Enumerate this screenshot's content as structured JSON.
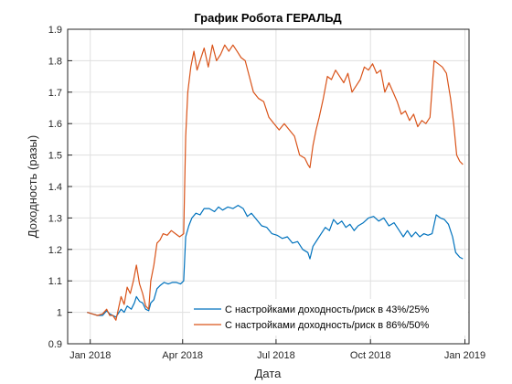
{
  "colors": {
    "series1": "#0072bd",
    "series2": "#d95319",
    "grid": "#dfdfdf",
    "axis": "#262626"
  },
  "chart_data": {
    "type": "line",
    "title": "График Робота ГЕРАЛЬД",
    "xlabel": "Дата",
    "ylabel": "Доходность (разы)",
    "x_type": "date",
    "xlim": [
      "2017-12-10",
      "2019-01-05"
    ],
    "ylim": [
      0.9,
      1.9
    ],
    "x_ticks": [
      {
        "date": "2018-01-01",
        "label": "Jan 2018"
      },
      {
        "date": "2018-04-01",
        "label": "Apr 2018"
      },
      {
        "date": "2018-07-01",
        "label": "Jul 2018"
      },
      {
        "date": "2018-10-01",
        "label": "Oct 2018"
      },
      {
        "date": "2019-01-01",
        "label": "Jan 2019"
      }
    ],
    "y_ticks": [
      "0.9",
      "1",
      "1.1",
      "1.2",
      "1.3",
      "1.4",
      "1.5",
      "1.6",
      "1.7",
      "1.8",
      "1.9"
    ],
    "grid": true,
    "legend_position": "bottom-right",
    "series": [
      {
        "name": "С настройками доходность/риск в 43%/25%",
        "color": "#0072bd",
        "points": [
          [
            "2017-12-29",
            1.0
          ],
          [
            "2018-01-03",
            0.995
          ],
          [
            "2018-01-08",
            0.99
          ],
          [
            "2018-01-13",
            0.99
          ],
          [
            "2018-01-17",
            1.005
          ],
          [
            "2018-01-20",
            0.995
          ],
          [
            "2018-01-23",
            0.99
          ],
          [
            "2018-01-26",
            0.985
          ],
          [
            "2018-01-31",
            1.01
          ],
          [
            "2018-02-03",
            1.0
          ],
          [
            "2018-02-06",
            1.02
          ],
          [
            "2018-02-10",
            1.01
          ],
          [
            "2018-02-13",
            1.03
          ],
          [
            "2018-02-15",
            1.05
          ],
          [
            "2018-02-18",
            1.035
          ],
          [
            "2018-02-21",
            1.03
          ],
          [
            "2018-02-24",
            1.01
          ],
          [
            "2018-02-27",
            1.005
          ],
          [
            "2018-03-01",
            1.03
          ],
          [
            "2018-03-04",
            1.04
          ],
          [
            "2018-03-07",
            1.075
          ],
          [
            "2018-03-10",
            1.085
          ],
          [
            "2018-03-14",
            1.095
          ],
          [
            "2018-03-18",
            1.09
          ],
          [
            "2018-03-22",
            1.095
          ],
          [
            "2018-03-26",
            1.095
          ],
          [
            "2018-03-30",
            1.09
          ],
          [
            "2018-04-02",
            1.1
          ],
          [
            "2018-04-04",
            1.24
          ],
          [
            "2018-04-07",
            1.275
          ],
          [
            "2018-04-10",
            1.3
          ],
          [
            "2018-04-14",
            1.315
          ],
          [
            "2018-04-18",
            1.31
          ],
          [
            "2018-04-22",
            1.33
          ],
          [
            "2018-04-27",
            1.33
          ],
          [
            "2018-05-02",
            1.32
          ],
          [
            "2018-05-06",
            1.335
          ],
          [
            "2018-05-10",
            1.325
          ],
          [
            "2018-05-15",
            1.335
          ],
          [
            "2018-05-20",
            1.33
          ],
          [
            "2018-05-25",
            1.34
          ],
          [
            "2018-05-30",
            1.33
          ],
          [
            "2018-06-03",
            1.305
          ],
          [
            "2018-06-07",
            1.315
          ],
          [
            "2018-06-12",
            1.295
          ],
          [
            "2018-06-17",
            1.275
          ],
          [
            "2018-06-22",
            1.27
          ],
          [
            "2018-06-27",
            1.25
          ],
          [
            "2018-07-02",
            1.245
          ],
          [
            "2018-07-07",
            1.235
          ],
          [
            "2018-07-12",
            1.24
          ],
          [
            "2018-07-17",
            1.22
          ],
          [
            "2018-07-22",
            1.225
          ],
          [
            "2018-07-27",
            1.2
          ],
          [
            "2018-08-01",
            1.19
          ],
          [
            "2018-08-03",
            1.17
          ],
          [
            "2018-08-06",
            1.21
          ],
          [
            "2018-08-10",
            1.23
          ],
          [
            "2018-08-14",
            1.25
          ],
          [
            "2018-08-18",
            1.27
          ],
          [
            "2018-08-22",
            1.26
          ],
          [
            "2018-08-26",
            1.295
          ],
          [
            "2018-08-30",
            1.28
          ],
          [
            "2018-09-03",
            1.29
          ],
          [
            "2018-09-07",
            1.27
          ],
          [
            "2018-09-11",
            1.28
          ],
          [
            "2018-09-15",
            1.26
          ],
          [
            "2018-09-19",
            1.275
          ],
          [
            "2018-09-24",
            1.285
          ],
          [
            "2018-09-29",
            1.3
          ],
          [
            "2018-10-04",
            1.305
          ],
          [
            "2018-10-09",
            1.29
          ],
          [
            "2018-10-14",
            1.3
          ],
          [
            "2018-10-19",
            1.275
          ],
          [
            "2018-10-24",
            1.285
          ],
          [
            "2018-10-29",
            1.26
          ],
          [
            "2018-11-02",
            1.24
          ],
          [
            "2018-11-06",
            1.26
          ],
          [
            "2018-11-10",
            1.24
          ],
          [
            "2018-11-14",
            1.255
          ],
          [
            "2018-11-18",
            1.24
          ],
          [
            "2018-11-22",
            1.25
          ],
          [
            "2018-11-26",
            1.245
          ],
          [
            "2018-11-30",
            1.25
          ],
          [
            "2018-12-04",
            1.31
          ],
          [
            "2018-12-08",
            1.3
          ],
          [
            "2018-12-12",
            1.295
          ],
          [
            "2018-12-16",
            1.28
          ],
          [
            "2018-12-20",
            1.24
          ],
          [
            "2018-12-23",
            1.19
          ],
          [
            "2018-12-27",
            1.175
          ],
          [
            "2018-12-30",
            1.17
          ]
        ]
      },
      {
        "name": "С настройками доходность/риск в 86%/50%",
        "color": "#d95319",
        "points": [
          [
            "2017-12-29",
            1.0
          ],
          [
            "2018-01-03",
            0.995
          ],
          [
            "2018-01-08",
            0.99
          ],
          [
            "2018-01-13",
            0.995
          ],
          [
            "2018-01-17",
            1.01
          ],
          [
            "2018-01-20",
            0.99
          ],
          [
            "2018-01-23",
            0.99
          ],
          [
            "2018-01-26",
            0.975
          ],
          [
            "2018-01-31",
            1.05
          ],
          [
            "2018-02-03",
            1.025
          ],
          [
            "2018-02-06",
            1.08
          ],
          [
            "2018-02-09",
            1.06
          ],
          [
            "2018-02-12",
            1.1
          ],
          [
            "2018-02-15",
            1.15
          ],
          [
            "2018-02-18",
            1.09
          ],
          [
            "2018-02-21",
            1.06
          ],
          [
            "2018-02-24",
            1.02
          ],
          [
            "2018-02-27",
            1.01
          ],
          [
            "2018-03-01",
            1.1
          ],
          [
            "2018-03-04",
            1.15
          ],
          [
            "2018-03-07",
            1.22
          ],
          [
            "2018-03-10",
            1.23
          ],
          [
            "2018-03-13",
            1.25
          ],
          [
            "2018-03-17",
            1.245
          ],
          [
            "2018-03-21",
            1.26
          ],
          [
            "2018-03-25",
            1.25
          ],
          [
            "2018-03-29",
            1.24
          ],
          [
            "2018-04-02",
            1.25
          ],
          [
            "2018-04-04",
            1.56
          ],
          [
            "2018-04-06",
            1.7
          ],
          [
            "2018-04-09",
            1.78
          ],
          [
            "2018-04-12",
            1.83
          ],
          [
            "2018-04-15",
            1.77
          ],
          [
            "2018-04-18",
            1.8
          ],
          [
            "2018-04-22",
            1.84
          ],
          [
            "2018-04-26",
            1.78
          ],
          [
            "2018-04-30",
            1.85
          ],
          [
            "2018-05-04",
            1.8
          ],
          [
            "2018-05-08",
            1.82
          ],
          [
            "2018-05-12",
            1.85
          ],
          [
            "2018-05-16",
            1.83
          ],
          [
            "2018-05-20",
            1.85
          ],
          [
            "2018-05-24",
            1.83
          ],
          [
            "2018-05-28",
            1.81
          ],
          [
            "2018-06-01",
            1.8
          ],
          [
            "2018-06-05",
            1.75
          ],
          [
            "2018-06-09",
            1.7
          ],
          [
            "2018-06-14",
            1.68
          ],
          [
            "2018-06-19",
            1.67
          ],
          [
            "2018-06-24",
            1.62
          ],
          [
            "2018-06-29",
            1.6
          ],
          [
            "2018-07-04",
            1.58
          ],
          [
            "2018-07-09",
            1.6
          ],
          [
            "2018-07-14",
            1.58
          ],
          [
            "2018-07-19",
            1.56
          ],
          [
            "2018-07-24",
            1.5
          ],
          [
            "2018-07-29",
            1.49
          ],
          [
            "2018-08-01",
            1.47
          ],
          [
            "2018-08-03",
            1.46
          ],
          [
            "2018-08-06",
            1.53
          ],
          [
            "2018-08-09",
            1.58
          ],
          [
            "2018-08-12",
            1.62
          ],
          [
            "2018-08-16",
            1.68
          ],
          [
            "2018-08-20",
            1.75
          ],
          [
            "2018-08-24",
            1.74
          ],
          [
            "2018-08-28",
            1.77
          ],
          [
            "2018-09-01",
            1.75
          ],
          [
            "2018-09-05",
            1.73
          ],
          [
            "2018-09-09",
            1.76
          ],
          [
            "2018-09-13",
            1.7
          ],
          [
            "2018-09-17",
            1.72
          ],
          [
            "2018-09-21",
            1.74
          ],
          [
            "2018-09-25",
            1.78
          ],
          [
            "2018-09-29",
            1.77
          ],
          [
            "2018-10-03",
            1.79
          ],
          [
            "2018-10-07",
            1.76
          ],
          [
            "2018-10-11",
            1.77
          ],
          [
            "2018-10-15",
            1.7
          ],
          [
            "2018-10-19",
            1.73
          ],
          [
            "2018-10-23",
            1.7
          ],
          [
            "2018-10-27",
            1.67
          ],
          [
            "2018-10-31",
            1.63
          ],
          [
            "2018-11-04",
            1.64
          ],
          [
            "2018-11-08",
            1.61
          ],
          [
            "2018-11-12",
            1.63
          ],
          [
            "2018-11-16",
            1.59
          ],
          [
            "2018-11-20",
            1.61
          ],
          [
            "2018-11-24",
            1.6
          ],
          [
            "2018-11-28",
            1.62
          ],
          [
            "2018-12-02",
            1.8
          ],
          [
            "2018-12-06",
            1.79
          ],
          [
            "2018-12-10",
            1.78
          ],
          [
            "2018-12-14",
            1.76
          ],
          [
            "2018-12-18",
            1.68
          ],
          [
            "2018-12-21",
            1.6
          ],
          [
            "2018-12-24",
            1.5
          ],
          [
            "2018-12-27",
            1.48
          ],
          [
            "2018-12-30",
            1.47
          ]
        ]
      }
    ]
  }
}
